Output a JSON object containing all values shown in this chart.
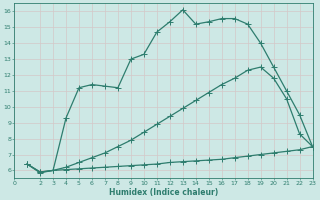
{
  "xlabel": "Humidex (Indice chaleur)",
  "bg_color": "#cde8e5",
  "grid_color": "#b8d8d4",
  "line_color": "#2e7d6e",
  "xlim": [
    0,
    23
  ],
  "ylim": [
    5.5,
    16.5
  ],
  "xticks": [
    0,
    2,
    3,
    4,
    5,
    6,
    7,
    8,
    9,
    10,
    11,
    12,
    13,
    14,
    15,
    16,
    17,
    18,
    19,
    20,
    21,
    22,
    23
  ],
  "yticks": [
    6,
    7,
    8,
    9,
    10,
    11,
    12,
    13,
    14,
    15,
    16
  ],
  "line1_x": [
    1,
    2,
    3,
    4,
    5,
    6,
    7,
    8,
    9,
    10,
    11,
    12,
    13,
    14,
    15,
    16,
    17,
    18,
    19,
    20,
    21,
    22,
    23
  ],
  "line1_y": [
    6.4,
    5.85,
    6.0,
    9.3,
    11.2,
    11.4,
    11.3,
    11.2,
    13.0,
    13.3,
    14.7,
    15.35,
    16.1,
    15.2,
    15.35,
    15.55,
    15.55,
    15.2,
    14.0,
    12.5,
    11.0,
    9.5,
    7.5
  ],
  "line2_x": [
    1,
    2,
    3,
    4,
    5,
    6,
    7,
    8,
    9,
    10,
    11,
    12,
    13,
    14,
    15,
    16,
    17,
    18,
    19,
    20,
    21,
    22,
    23
  ],
  "line2_y": [
    6.4,
    5.9,
    6.0,
    6.2,
    6.5,
    6.8,
    7.1,
    7.5,
    7.9,
    8.4,
    8.9,
    9.4,
    9.9,
    10.4,
    10.9,
    11.4,
    11.8,
    12.3,
    12.5,
    11.8,
    10.5,
    8.3,
    7.5
  ],
  "line3_x": [
    1,
    2,
    3,
    4,
    5,
    6,
    7,
    8,
    9,
    10,
    11,
    12,
    13,
    14,
    15,
    16,
    17,
    18,
    19,
    20,
    21,
    22,
    23
  ],
  "line3_y": [
    6.4,
    5.9,
    6.0,
    6.05,
    6.1,
    6.15,
    6.2,
    6.25,
    6.3,
    6.35,
    6.4,
    6.5,
    6.55,
    6.6,
    6.65,
    6.7,
    6.8,
    6.9,
    7.0,
    7.1,
    7.2,
    7.3,
    7.5
  ],
  "marker_size": 2.5,
  "line_width": 0.9
}
